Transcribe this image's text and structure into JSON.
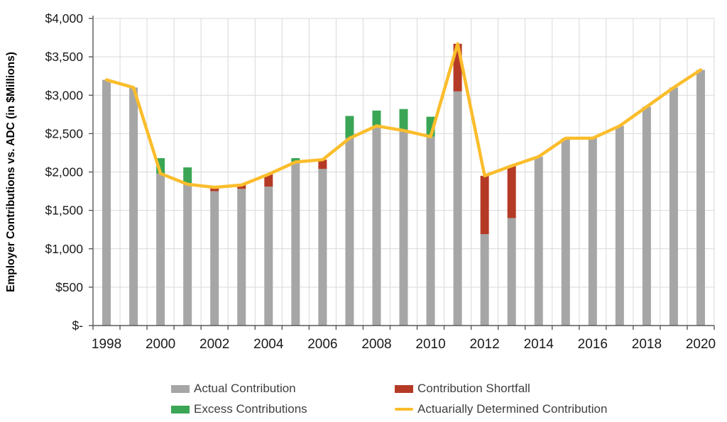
{
  "chart_data": {
    "type": "bar",
    "subtype": "combo-stacked-bar-with-line",
    "title": "",
    "xlabel": "",
    "ylabel": "Employer Contributions vs. ADC (in $Millions)",
    "ylim": [
      0,
      4000
    ],
    "y_tick_step": 500,
    "y_tick_labels": [
      "$-",
      "$500",
      "$1,000",
      "$1,500",
      "$2,000",
      "$2,500",
      "$3,000",
      "$3,500",
      "$4,000"
    ],
    "x_tick_labels_shown": [
      "1998",
      "2000",
      "2002",
      "2004",
      "2006",
      "2008",
      "2010",
      "2012",
      "2014",
      "2016",
      "2018",
      "2020"
    ],
    "grid": {
      "horizontal": true,
      "vertical": true,
      "color": "#d9d9d9"
    },
    "legend_position": "bottom",
    "categories": [
      1998,
      1999,
      2000,
      2001,
      2002,
      2003,
      2004,
      2005,
      2006,
      2007,
      2008,
      2009,
      2010,
      2011,
      2012,
      2013,
      2014,
      2015,
      2016,
      2017,
      2018,
      2019,
      2020
    ],
    "series": [
      {
        "name": "Actual Contribution",
        "type": "bar",
        "color": "#a6a6a6",
        "values": [
          3200,
          3100,
          2180,
          2060,
          1750,
          1780,
          1810,
          2180,
          2040,
          2730,
          2800,
          2820,
          2720,
          3050,
          1190,
          1400,
          2200,
          2440,
          2440,
          2600,
          2850,
          3100,
          3330
        ]
      },
      {
        "name": "Contribution Shortfall",
        "type": "bar-segment-above-actual",
        "color": "#b53a26",
        "values": [
          0,
          0,
          0,
          0,
          50,
          50,
          160,
          0,
          120,
          0,
          0,
          0,
          0,
          620,
          760,
          680,
          0,
          0,
          0,
          0,
          0,
          0,
          0
        ]
      },
      {
        "name": "Excess Contributions",
        "type": "bar-segment-top-of-actual",
        "color": "#3aa655",
        "values": [
          0,
          0,
          200,
          220,
          0,
          0,
          0,
          50,
          0,
          290,
          200,
          280,
          260,
          0,
          0,
          0,
          0,
          0,
          0,
          0,
          0,
          0,
          0
        ]
      },
      {
        "name": "Actuarially Determined Contribution",
        "type": "line",
        "color": "#fbbd2c",
        "values": [
          3200,
          3100,
          1980,
          1840,
          1800,
          1830,
          1970,
          2130,
          2160,
          2440,
          2600,
          2540,
          2460,
          3670,
          1950,
          2080,
          2200,
          2440,
          2440,
          2600,
          2850,
          3100,
          3330
        ]
      }
    ],
    "axis_color": "#595959",
    "tick_label_color": "#1a1a1a"
  },
  "legend": {
    "items": [
      {
        "label": "Actual Contribution",
        "color": "#a6a6a6",
        "swatch": "box"
      },
      {
        "label": "Contribution Shortfall",
        "color": "#b53a26",
        "swatch": "box"
      },
      {
        "label": "Excess Contributions",
        "color": "#3aa655",
        "swatch": "box"
      },
      {
        "label": "Actuarially Determined Contribution",
        "color": "#fbbd2c",
        "swatch": "line"
      }
    ]
  }
}
